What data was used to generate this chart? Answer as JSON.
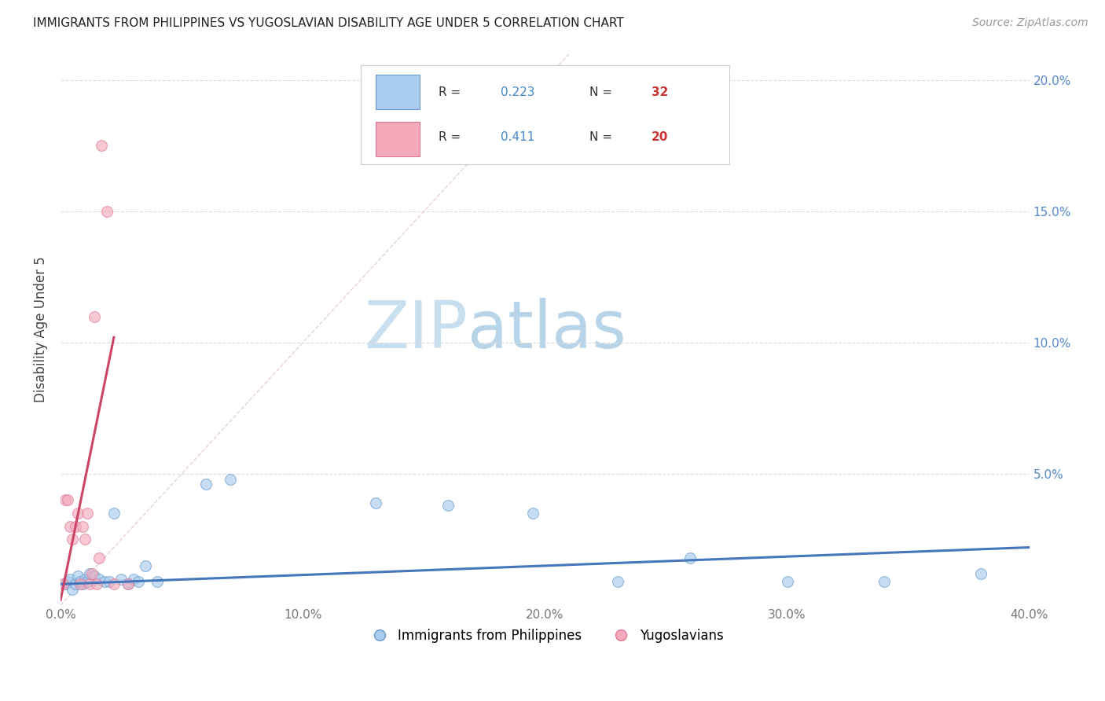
{
  "title": "IMMIGRANTS FROM PHILIPPINES VS YUGOSLAVIAN DISABILITY AGE UNDER 5 CORRELATION CHART",
  "source": "Source: ZipAtlas.com",
  "ylabel": "Disability Age Under 5",
  "xlim": [
    0.0,
    0.4
  ],
  "ylim": [
    0.0,
    0.21
  ],
  "xticks": [
    0.0,
    0.1,
    0.2,
    0.3,
    0.4
  ],
  "yticks": [
    0.0,
    0.05,
    0.1,
    0.15,
    0.2
  ],
  "xtick_labels": [
    "0.0%",
    "10.0%",
    "20.0%",
    "30.0%",
    "40.0%"
  ],
  "right_ytick_labels": [
    "",
    "5.0%",
    "10.0%",
    "15.0%",
    "20.0%"
  ],
  "blue_scatter_x": [
    0.002,
    0.003,
    0.004,
    0.005,
    0.006,
    0.007,
    0.008,
    0.009,
    0.01,
    0.011,
    0.012,
    0.014,
    0.016,
    0.018,
    0.02,
    0.022,
    0.025,
    0.028,
    0.03,
    0.032,
    0.035,
    0.04,
    0.06,
    0.07,
    0.13,
    0.16,
    0.195,
    0.23,
    0.26,
    0.3,
    0.34,
    0.38
  ],
  "blue_scatter_y": [
    0.008,
    0.009,
    0.01,
    0.006,
    0.008,
    0.011,
    0.009,
    0.008,
    0.01,
    0.009,
    0.012,
    0.011,
    0.01,
    0.009,
    0.009,
    0.035,
    0.01,
    0.008,
    0.01,
    0.009,
    0.015,
    0.009,
    0.046,
    0.048,
    0.039,
    0.038,
    0.035,
    0.009,
    0.018,
    0.009,
    0.009,
    0.012
  ],
  "pink_scatter_x": [
    0.001,
    0.002,
    0.003,
    0.004,
    0.005,
    0.006,
    0.007,
    0.008,
    0.009,
    0.01,
    0.011,
    0.012,
    0.013,
    0.014,
    0.015,
    0.016,
    0.017,
    0.019,
    0.022,
    0.028
  ],
  "pink_scatter_y": [
    0.008,
    0.04,
    0.04,
    0.03,
    0.025,
    0.03,
    0.035,
    0.008,
    0.03,
    0.025,
    0.035,
    0.008,
    0.012,
    0.11,
    0.008,
    0.018,
    0.175,
    0.15,
    0.008,
    0.008
  ],
  "blue_line_x": [
    0.0,
    0.4
  ],
  "blue_line_y": [
    0.008,
    0.022
  ],
  "pink_line_x": [
    0.0,
    0.022
  ],
  "pink_line_y": [
    0.002,
    0.102
  ],
  "diag_line_x": [
    0.0,
    0.21
  ],
  "diag_line_y": [
    0.0,
    0.21
  ],
  "blue_color": "#aaccee",
  "pink_color": "#f4aabb",
  "blue_edge_color": "#6699cc",
  "pink_edge_color": "#dd7799",
  "blue_line_color": "#4477bb",
  "pink_line_color": "#cc4466",
  "diag_line_color": "#cccccc",
  "background_color": "#ffffff",
  "scatter_alpha": 0.65,
  "scatter_size": 100,
  "watermark_zip_color": "#c8dff0",
  "watermark_atlas_color": "#b8d4e8",
  "watermark_fontsize": 60,
  "legend_r_color": "#4488cc",
  "legend_n_color": "#cc3333",
  "grid_color": "#dddddd"
}
